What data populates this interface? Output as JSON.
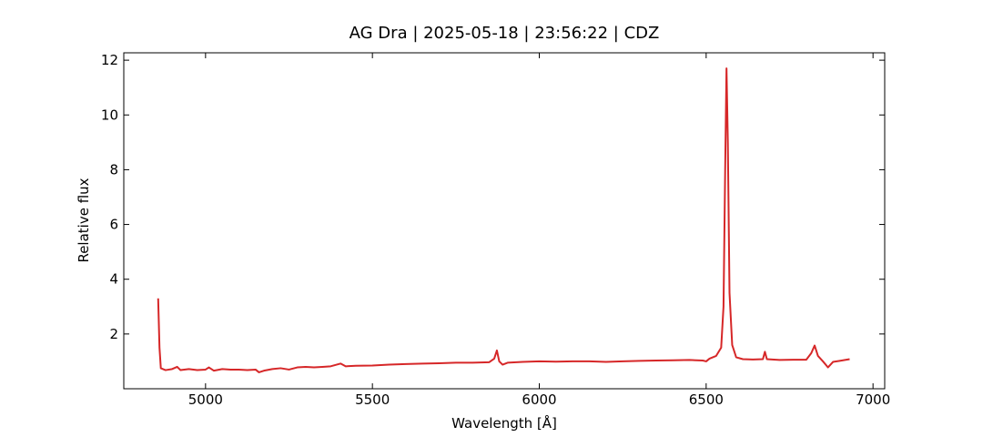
{
  "chart_data": {
    "type": "line",
    "title": "AG Dra | 2025-05-18 | 23:56:22 | CDZ",
    "xlabel": "Wavelength [Å]",
    "ylabel": "Relative flux",
    "xlim": [
      4755,
      7035
    ],
    "ylim": [
      0,
      12.27
    ],
    "xticks": [
      5000,
      5500,
      6000,
      6500,
      7000
    ],
    "yticks": [
      2,
      4,
      6,
      8,
      10,
      12
    ],
    "series": [
      {
        "color": "#d62728",
        "x": [
          4858,
          4862,
          4866,
          4880,
          4900,
          4915,
          4925,
          4950,
          4975,
          5000,
          5010,
          5025,
          5050,
          5075,
          5100,
          5125,
          5150,
          5160,
          5175,
          5200,
          5225,
          5250,
          5275,
          5300,
          5325,
          5350,
          5375,
          5405,
          5420,
          5450,
          5500,
          5550,
          5600,
          5650,
          5700,
          5750,
          5800,
          5850,
          5865,
          5873,
          5880,
          5890,
          5905,
          5950,
          6000,
          6050,
          6100,
          6150,
          6200,
          6250,
          6300,
          6350,
          6400,
          6450,
          6490,
          6500,
          6510,
          6530,
          6545,
          6552,
          6557,
          6561,
          6565,
          6570,
          6578,
          6590,
          6610,
          6640,
          6670,
          6676,
          6682,
          6720,
          6760,
          6800,
          6815,
          6825,
          6835,
          6850,
          6865,
          6880,
          6900,
          6930
        ],
        "values": [
          3.3,
          1.5,
          0.75,
          0.68,
          0.72,
          0.8,
          0.68,
          0.72,
          0.68,
          0.7,
          0.78,
          0.66,
          0.72,
          0.7,
          0.7,
          0.68,
          0.7,
          0.6,
          0.66,
          0.72,
          0.75,
          0.7,
          0.78,
          0.8,
          0.78,
          0.8,
          0.82,
          0.92,
          0.82,
          0.84,
          0.85,
          0.88,
          0.9,
          0.92,
          0.93,
          0.95,
          0.95,
          0.97,
          1.1,
          1.4,
          1.0,
          0.88,
          0.95,
          0.98,
          1.0,
          0.99,
          1.0,
          1.0,
          0.98,
          1.0,
          1.02,
          1.03,
          1.04,
          1.05,
          1.03,
          1.0,
          1.1,
          1.2,
          1.5,
          3.0,
          8.0,
          11.7,
          9.0,
          3.5,
          1.6,
          1.15,
          1.08,
          1.07,
          1.08,
          1.35,
          1.08,
          1.05,
          1.06,
          1.06,
          1.3,
          1.58,
          1.2,
          1.0,
          0.78,
          0.98,
          1.02,
          1.08
        ]
      }
    ]
  }
}
